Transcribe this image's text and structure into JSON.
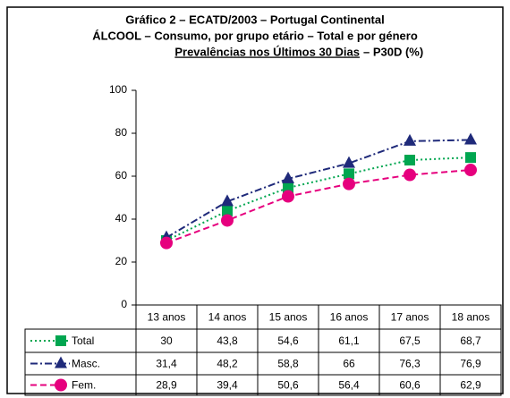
{
  "chart_data": {
    "type": "line",
    "title_lines": [
      "Gráfico 2 – ECATD/2003 – Portugal Continental",
      "ÁLCOOL – Consumo, por grupo etário – Total e por género"
    ],
    "subtitle": {
      "underlined": "Prevalências nos Últimos 30 Dias",
      "rest": "– P30D (%)"
    },
    "categories": [
      "13 anos",
      "14 anos",
      "15 anos",
      "16 anos",
      "17 anos",
      "18 anos"
    ],
    "series": [
      {
        "name": "Total",
        "color": "#00a650",
        "marker": "square",
        "values": [
          30,
          43.8,
          54.6,
          61.1,
          67.5,
          68.7
        ],
        "value_labels": [
          "30",
          "43,8",
          "54,6",
          "61,1",
          "67,5",
          "68,7"
        ]
      },
      {
        "name": "Masc.",
        "color": "#1f2a7a",
        "marker": "triangle",
        "values": [
          31.4,
          48.2,
          58.8,
          66,
          76.3,
          76.9
        ],
        "value_labels": [
          "31,4",
          "48,2",
          "58,8",
          "66",
          "76,3",
          "76,9"
        ]
      },
      {
        "name": "Fem.",
        "color": "#e6007e",
        "marker": "circle",
        "values": [
          28.9,
          39.4,
          50.6,
          56.4,
          60.6,
          62.9
        ],
        "value_labels": [
          "28,9",
          "39,4",
          "50,6",
          "56,4",
          "60,6",
          "62,9"
        ]
      }
    ],
    "ylim": [
      0,
      100
    ],
    "yticks": [
      0,
      20,
      40,
      60,
      80,
      100
    ],
    "grid": false
  }
}
